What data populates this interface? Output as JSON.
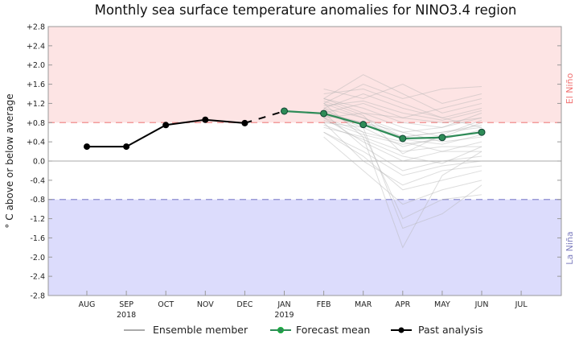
{
  "chart_data": {
    "type": "line",
    "title": "Monthly sea surface temperature anomalies for NINO3.4 region",
    "ylabel": "° C above or below average",
    "ylim": [
      -2.8,
      2.8
    ],
    "yticks": [
      "+2.8",
      "+2.4",
      "+2.0",
      "+1.6",
      "+1.2",
      "+0.8",
      "+0.4",
      "0.0",
      "-0.4",
      "-0.8",
      "-1.2",
      "-1.6",
      "-2.0",
      "-2.4",
      "-2.8"
    ],
    "ytick_values": [
      2.8,
      2.4,
      2.0,
      1.6,
      1.2,
      0.8,
      0.4,
      0,
      -0.4,
      -0.8,
      -1.2,
      -1.6,
      -2.0,
      -2.4,
      -2.8
    ],
    "categories": [
      "AUG",
      "SEP",
      "OCT",
      "NOV",
      "DEC",
      "JAN",
      "FEB",
      "MAR",
      "APR",
      "MAY",
      "JUN",
      "JUL"
    ],
    "year_labels": {
      "SEP": "2018",
      "JAN": "2019"
    },
    "thresholds": {
      "el_nino": 0.8,
      "la_nina": -0.8
    },
    "region_labels": {
      "el_nino": "El Niño",
      "la_nina": "La Niña"
    },
    "colors": {
      "el_nino_fill": "#fde4e4",
      "la_nina_fill": "#dcdcfc",
      "el_nino_line": "#f08c8c",
      "la_nina_line": "#8c8cd0",
      "ensemble": "#b4b4b4",
      "forecast": "#2e8b57",
      "past": "#000000",
      "el_nino_text": "#f07070",
      "la_nina_text": "#8080c0"
    },
    "legend": {
      "placement": "bottom",
      "entries": [
        "Ensemble member",
        "Forecast mean",
        "Past analysis"
      ]
    },
    "series": [
      {
        "name": "Past analysis",
        "x": [
          "AUG",
          "SEP",
          "OCT",
          "NOV",
          "DEC"
        ],
        "values": [
          0.3,
          0.3,
          0.75,
          0.86,
          0.79
        ]
      },
      {
        "name": "Forecast mean",
        "x": [
          "JAN",
          "FEB",
          "MAR",
          "APR",
          "MAY",
          "JUN"
        ],
        "values": [
          1.04,
          0.99,
          0.76,
          0.47,
          0.49,
          0.6
        ]
      }
    ],
    "ensemble_x": [
      "FEB",
      "MAR",
      "APR",
      "MAY",
      "JUN"
    ],
    "ensemble": [
      [
        1.3,
        1.8,
        1.4,
        1.0,
        1.2
      ],
      [
        1.2,
        1.6,
        1.3,
        1.5,
        1.55
      ],
      [
        1.5,
        1.3,
        1.6,
        1.2,
        1.4
      ],
      [
        1.1,
        1.4,
        1.1,
        0.9,
        1.1
      ],
      [
        1.0,
        1.2,
        0.9,
        1.1,
        1.3
      ],
      [
        1.3,
        1.1,
        0.8,
        0.7,
        1.0
      ],
      [
        0.9,
        1.0,
        0.7,
        0.5,
        0.8
      ],
      [
        1.2,
        0.9,
        0.5,
        0.6,
        0.7
      ],
      [
        1.0,
        0.8,
        0.6,
        0.4,
        0.5
      ],
      [
        0.8,
        0.7,
        0.3,
        0.5,
        0.6
      ],
      [
        1.1,
        0.6,
        0.4,
        0.2,
        0.4
      ],
      [
        0.7,
        0.5,
        0.2,
        0.3,
        0.3
      ],
      [
        0.9,
        0.4,
        0.0,
        0.2,
        0.2
      ],
      [
        1.0,
        0.3,
        -0.2,
        0.0,
        0.1
      ],
      [
        0.6,
        0.2,
        -0.3,
        -0.1,
        0.0
      ],
      [
        0.8,
        0.0,
        -0.5,
        -0.2,
        -0.1
      ],
      [
        0.5,
        -0.2,
        -0.9,
        -0.6,
        -0.4
      ],
      [
        0.9,
        0.6,
        -1.2,
        -0.8,
        -0.7
      ],
      [
        1.2,
        0.5,
        -1.8,
        -0.3,
        0.2
      ],
      [
        1.0,
        0.7,
        -1.4,
        -1.1,
        -0.5
      ],
      [
        1.3,
        1.0,
        0.9,
        0.8,
        0.9
      ],
      [
        1.1,
        0.9,
        0.6,
        0.7,
        0.9
      ],
      [
        0.95,
        0.8,
        0.5,
        0.6,
        0.75
      ],
      [
        1.05,
        0.75,
        0.45,
        0.35,
        0.55
      ],
      [
        1.15,
        1.25,
        1.0,
        0.85,
        1.05
      ],
      [
        0.85,
        0.55,
        0.35,
        0.45,
        0.65
      ],
      [
        1.25,
        0.95,
        0.15,
        0.55,
        0.85
      ],
      [
        0.75,
        0.45,
        0.1,
        -0.05,
        0.3
      ],
      [
        1.4,
        1.5,
        1.2,
        0.9,
        0.7
      ],
      [
        0.6,
        0.1,
        -0.6,
        -0.4,
        -0.2
      ]
    ]
  }
}
